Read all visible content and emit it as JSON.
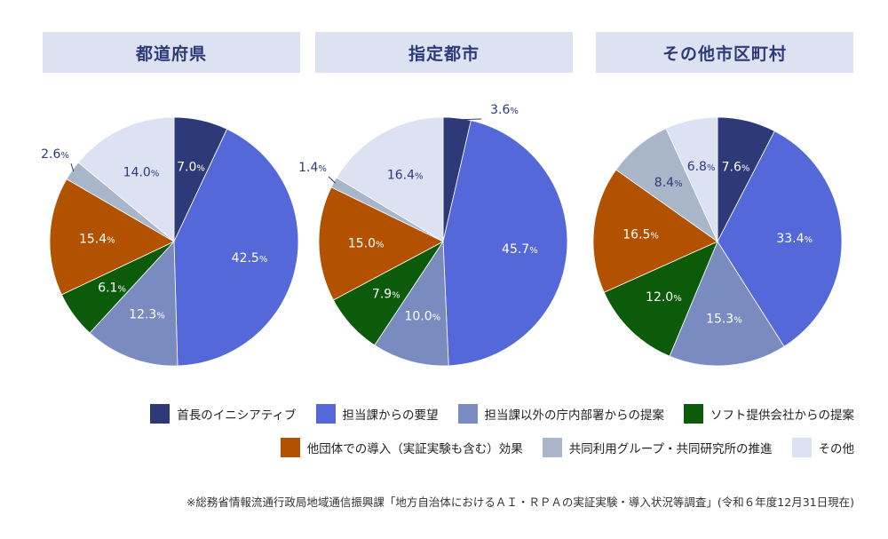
{
  "categories": [
    "首長のイニシアティブ",
    "担当課からの要望",
    "担当課以外の庁内部署からの提案",
    "ソフト提供会社からの提案",
    "他団体での導入（実証実験も含む）効果",
    "共同利用グループ・共同研究所の推進",
    "その他"
  ],
  "colors": [
    "#2e3a78",
    "#5468d9",
    "#7a8bc0",
    "#0c5b0a",
    "#b25200",
    "#a9b6c9",
    "#dde2f2"
  ],
  "chart_data": [
    {
      "type": "pie",
      "title": "都道府県",
      "values": [
        7.0,
        42.5,
        12.3,
        6.1,
        15.4,
        2.6,
        14.0
      ]
    },
    {
      "type": "pie",
      "title": "指定都市",
      "values": [
        3.6,
        45.7,
        10.0,
        7.9,
        15.0,
        1.4,
        16.4
      ]
    },
    {
      "type": "pie",
      "title": "その他市区町村",
      "values": [
        7.6,
        33.4,
        15.3,
        12.0,
        16.5,
        8.4,
        6.8
      ]
    }
  ],
  "unit": "%",
  "source": "※総務省情報流通行政局地域通信振興課「地方自治体におけるＡＩ・ＲＰＡの実証実験・導入状況等調査」(令和６年度12月31日現在)"
}
